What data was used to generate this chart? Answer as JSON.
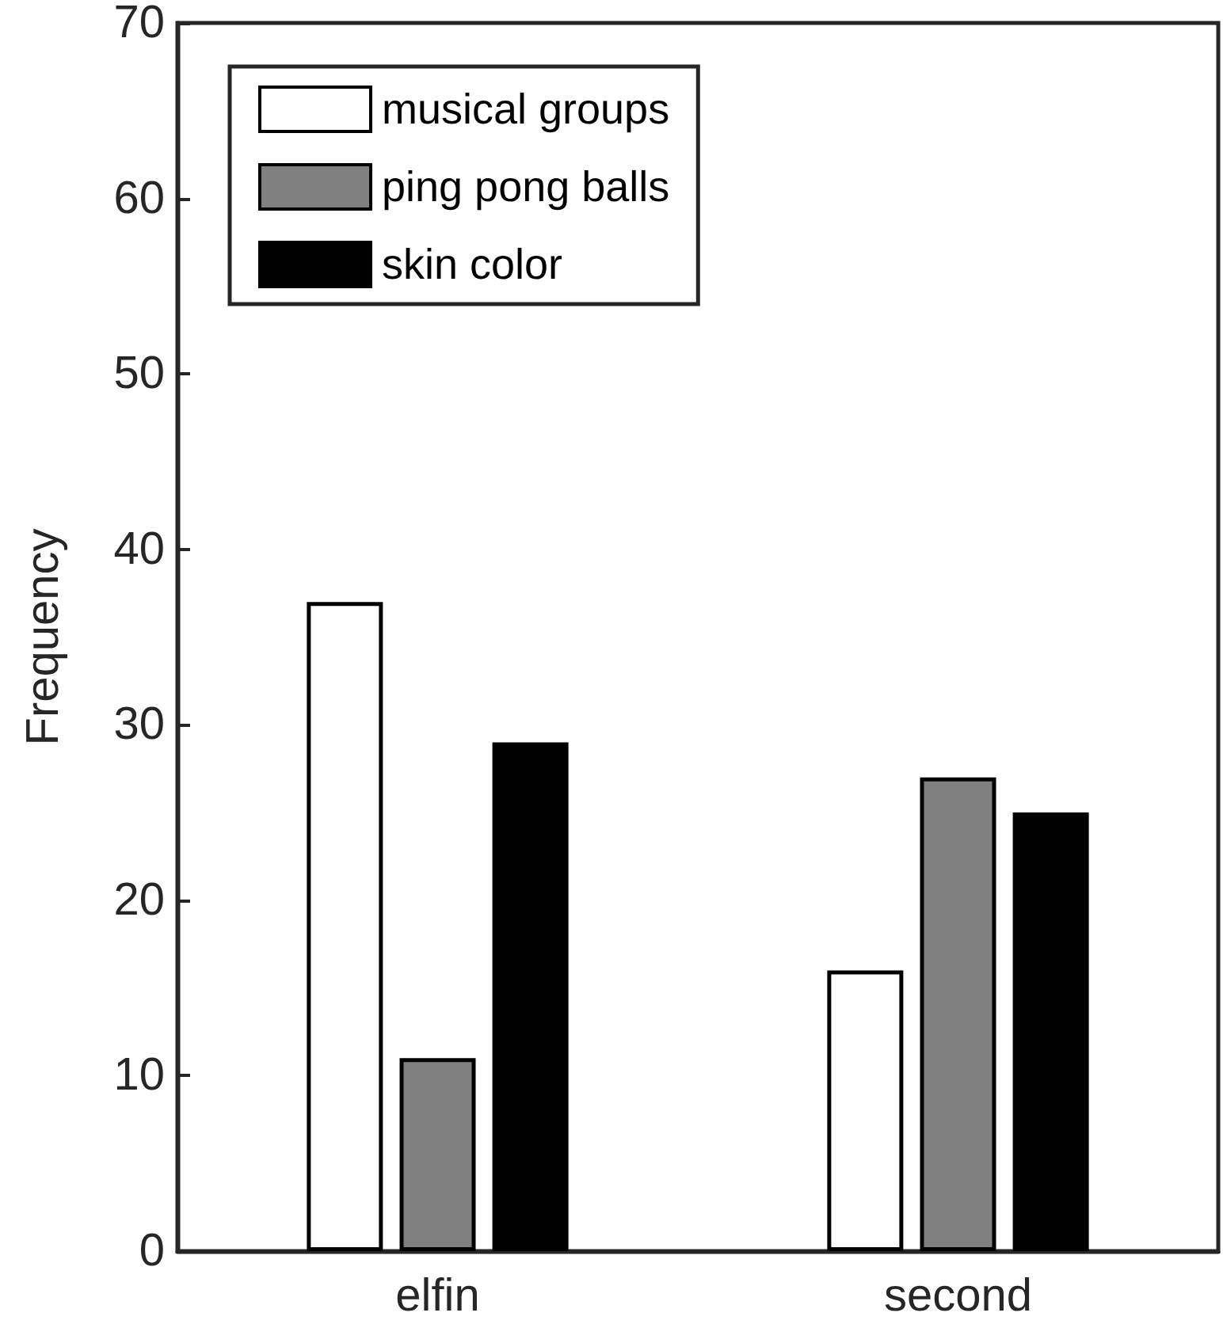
{
  "chart_data": {
    "type": "bar",
    "ylabel": "Frequency",
    "categories": [
      "elfin",
      "second"
    ],
    "series": [
      {
        "name": "musical groups",
        "color": "#ffffff",
        "values": [
          37,
          16
        ]
      },
      {
        "name": "ping pong balls",
        "color": "#808080",
        "values": [
          11,
          27
        ]
      },
      {
        "name": "skin color",
        "color": "#000000",
        "values": [
          29,
          25
        ]
      }
    ],
    "ylim": [
      0,
      70
    ],
    "yticks": [
      0,
      10,
      20,
      30,
      40,
      50,
      60,
      70
    ],
    "grid": false,
    "legend": "top left"
  }
}
